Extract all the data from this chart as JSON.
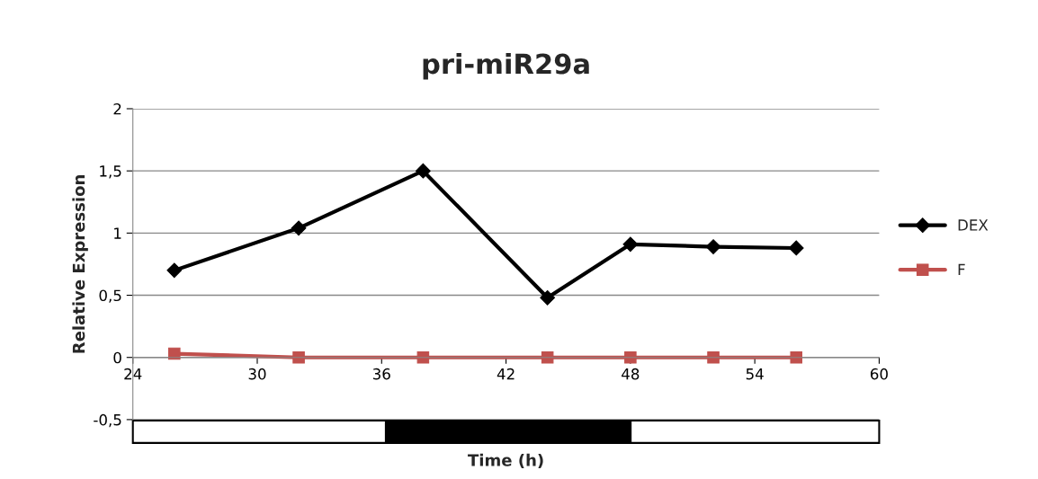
{
  "chart_data": {
    "type": "line",
    "title": "pri-miR29a",
    "xlabel": "Time (h)",
    "ylabel": "Relative Expression",
    "x": [
      26,
      32,
      38,
      44,
      48,
      52,
      56
    ],
    "series": [
      {
        "name": "DEX",
        "color": "#000000",
        "marker": "diamond",
        "values": [
          0.7,
          1.04,
          1.5,
          0.48,
          0.91,
          0.89,
          0.88
        ]
      },
      {
        "name": "F",
        "color": "#c0504d",
        "marker": "square",
        "values": [
          0.03,
          0,
          0,
          0,
          0,
          0,
          0
        ]
      }
    ],
    "xlim": [
      24,
      60
    ],
    "xticks": [
      24,
      30,
      36,
      42,
      48,
      54,
      60
    ],
    "ylim": [
      -0.5,
      2
    ],
    "yticks": [
      {
        "value": -0.5,
        "label": "-0,5"
      },
      {
        "value": 0,
        "label": "0"
      },
      {
        "value": 0.5,
        "label": "0,5"
      },
      {
        "value": 1,
        "label": "1"
      },
      {
        "value": 1.5,
        "label": "1,5"
      },
      {
        "value": 2,
        "label": "2"
      }
    ],
    "grid": "y",
    "legend": "right",
    "line_style": "solid"
  }
}
